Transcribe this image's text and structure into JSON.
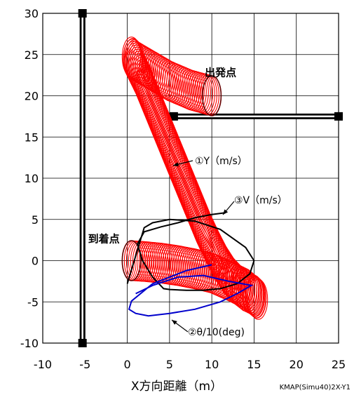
{
  "chart_data": {
    "type": "scatter",
    "title": "",
    "xlabel": "X方向距離（m）",
    "ylabel": "",
    "xlim": [
      -10,
      25
    ],
    "ylim": [
      -10,
      30
    ],
    "xticks": [
      -10,
      -5,
      0,
      5,
      10,
      15,
      20,
      25
    ],
    "yticks": [
      -10,
      -5,
      0,
      5,
      10,
      15,
      20,
      25,
      30
    ],
    "grid": true,
    "legend": "none",
    "credit": "KMAP(Simu40)2X-Y1",
    "colors": {
      "rings": "#ff0000",
      "velocity": "#000000",
      "angle": "#0000cc",
      "walls": "#000000"
    },
    "walls": [
      {
        "x": [
          -5.3,
          -5.3
        ],
        "y": [
          30,
          -10
        ]
      },
      {
        "x": [
          5.5,
          25
        ],
        "y": [
          17.5,
          17.5
        ]
      }
    ],
    "series": [
      {
        "name": "",
        "label": "①Y（m/s）",
        "kind": "rings",
        "ring_radius": 1.1,
        "x": [
          10,
          7.5,
          5,
          2.5,
          1,
          0.5,
          1.8,
          3,
          4,
          5,
          6,
          7,
          8,
          9,
          10,
          11,
          12,
          13,
          14,
          15,
          15.5,
          14,
          12,
          10,
          8,
          6,
          4,
          2,
          0.5
        ],
        "y": [
          20,
          20.7,
          21.8,
          23.3,
          24.2,
          24.7,
          22,
          19,
          16.5,
          14,
          11.5,
          9,
          6.5,
          4,
          1.8,
          -0.2,
          -1.8,
          -2.9,
          -3.7,
          -4.2,
          -4.7,
          -3.4,
          -2.4,
          -1.5,
          -1,
          -0.6,
          -0.3,
          -0.1,
          0
        ]
      },
      {
        "name": "",
        "label": "③V（m/s）",
        "kind": "line",
        "x": [
          11.5,
          10,
          8,
          6,
          4,
          2,
          1.2,
          1.8,
          3,
          4.3,
          5,
          7,
          9,
          11,
          13,
          14.5,
          15,
          14,
          11,
          8,
          5,
          3,
          2,
          0
        ],
        "y": [
          5.8,
          5.6,
          5.2,
          4.6,
          4.1,
          3.5,
          2,
          0,
          -2,
          -3.4,
          -3.5,
          -3.6,
          -3.6,
          -3.4,
          -2.8,
          -1.6,
          0,
          1.6,
          3.8,
          4.8,
          5,
          4.6,
          4,
          -2.8
        ]
      },
      {
        "name": "",
        "label": "②θ/10(deg)",
        "kind": "line",
        "x": [
          10,
          7,
          3,
          0.5,
          0.2,
          1,
          2.5,
          5,
          8,
          11,
          13,
          14.7,
          12,
          9,
          6,
          3,
          1
        ],
        "y": [
          -0.5,
          -1.2,
          -2.8,
          -4.9,
          -5.9,
          -6.4,
          -6.7,
          -6.4,
          -5.9,
          -5,
          -4,
          -3,
          -2.5,
          -1.8,
          -2,
          -3,
          -4
        ]
      }
    ],
    "annotations": [
      {
        "text": "出発点",
        "x": 10,
        "y": 20
      },
      {
        "text": "到着点",
        "x": 0,
        "y": 0
      }
    ]
  }
}
